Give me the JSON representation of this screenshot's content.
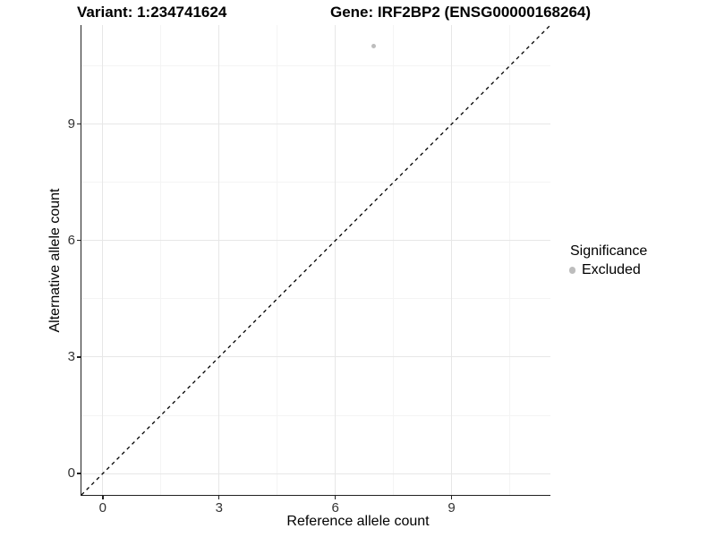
{
  "chart_data": {
    "type": "scatter",
    "title_left": "Variant: 1:234741624",
    "title_right": "Gene: IRF2BP2 (ENSG00000168264)",
    "xlabel": "Reference allele count",
    "ylabel": "Alternative allele count",
    "xlim": [
      -0.55,
      11.55
    ],
    "ylim": [
      -0.55,
      11.55
    ],
    "xticks": [
      0,
      3,
      6,
      9
    ],
    "yticks": [
      0,
      3,
      6,
      9
    ],
    "minor_gridlines": [
      1.5,
      4.5,
      7.5,
      10.5
    ],
    "grid": true,
    "points": [
      {
        "x": 7,
        "y": 11,
        "series": "Excluded"
      }
    ],
    "identity_line": {
      "equation": "y = x",
      "style": "dashed",
      "color": "#000000"
    },
    "legend": {
      "position": "right",
      "title": "Significance",
      "items": [
        {
          "label": "Excluded",
          "color": "#bdbdbd",
          "marker": "circle"
        }
      ]
    },
    "colors": {
      "major_grid": "#e7e7e7",
      "minor_grid": "#f4f4f4",
      "axis_line": "#222222",
      "tick_label": "#333333",
      "point_excluded": "#bdbdbd"
    }
  }
}
